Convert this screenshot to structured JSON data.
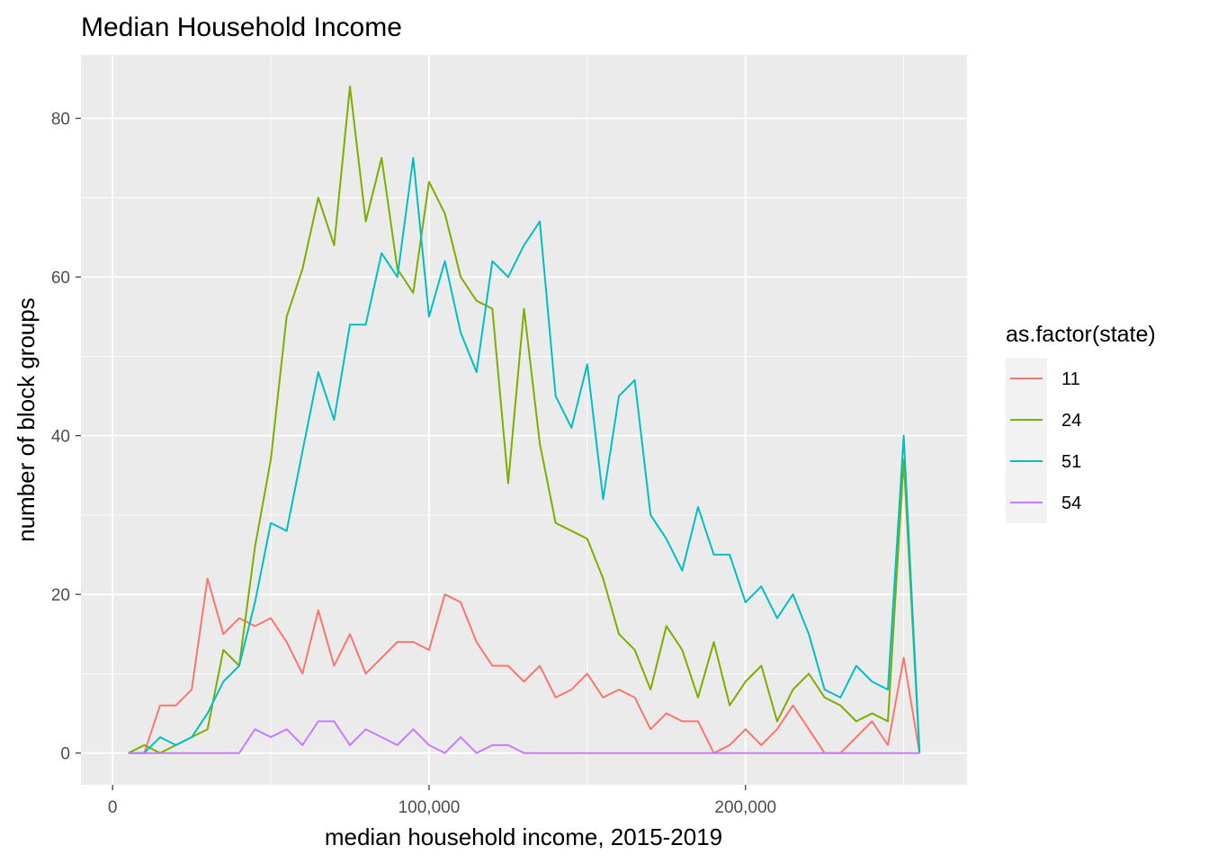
{
  "chart_data": {
    "type": "line",
    "title": "Median Household Income",
    "xlabel": "median household income, 2015-2019",
    "ylabel": "number of block groups",
    "xlim": [
      -10000,
      270000
    ],
    "ylim": [
      -4,
      88
    ],
    "x_ticks": [
      0,
      100000,
      200000
    ],
    "x_tick_labels": [
      "0",
      "100,000",
      "200,000"
    ],
    "x_minor_ticks": [
      50000,
      150000,
      250000
    ],
    "y_ticks": [
      0,
      20,
      40,
      60,
      80
    ],
    "y_tick_labels": [
      "0",
      "20",
      "40",
      "60",
      "80"
    ],
    "y_minor_ticks": [
      10,
      30,
      50,
      70
    ],
    "grid": true,
    "background": "#EBEBEB",
    "legend": {
      "title": "as.factor(state)",
      "position": "right"
    },
    "x": [
      5000,
      10000,
      15000,
      20000,
      25000,
      30000,
      35000,
      40000,
      45000,
      50000,
      55000,
      60000,
      65000,
      70000,
      75000,
      80000,
      85000,
      90000,
      95000,
      100000,
      105000,
      110000,
      115000,
      120000,
      125000,
      130000,
      135000,
      140000,
      145000,
      150000,
      155000,
      160000,
      165000,
      170000,
      175000,
      180000,
      185000,
      190000,
      195000,
      200000,
      205000,
      210000,
      215000,
      220000,
      225000,
      230000,
      235000,
      240000,
      245000,
      250000,
      255000
    ],
    "series": [
      {
        "name": "11",
        "color": "#F8766D",
        "values": [
          0,
          0,
          6,
          6,
          8,
          22,
          15,
          17,
          16,
          17,
          14,
          10,
          18,
          11,
          15,
          10,
          12,
          14,
          14,
          13,
          20,
          19,
          14,
          11,
          11,
          9,
          11,
          7,
          8,
          10,
          7,
          8,
          7,
          3,
          5,
          4,
          4,
          0,
          1,
          3,
          1,
          3,
          6,
          3,
          0,
          0,
          2,
          4,
          1,
          12,
          0
        ]
      },
      {
        "name": "24",
        "color": "#7CAE00",
        "values": [
          0,
          1,
          0,
          1,
          2,
          3,
          13,
          11,
          26,
          37,
          55,
          61,
          70,
          64,
          84,
          67,
          75,
          61,
          58,
          72,
          68,
          60,
          57,
          56,
          34,
          56,
          39,
          29,
          28,
          27,
          22,
          15,
          13,
          8,
          16,
          13,
          7,
          14,
          6,
          9,
          11,
          4,
          8,
          10,
          7,
          6,
          4,
          5,
          4,
          37,
          0
        ]
      },
      {
        "name": "51",
        "color": "#00BFC4",
        "values": [
          0,
          0,
          2,
          1,
          2,
          5,
          9,
          11,
          19,
          29,
          28,
          38,
          48,
          42,
          54,
          54,
          63,
          60,
          75,
          55,
          62,
          53,
          48,
          62,
          60,
          64,
          67,
          45,
          41,
          49,
          32,
          45,
          47,
          30,
          27,
          23,
          31,
          25,
          25,
          19,
          21,
          17,
          20,
          15,
          8,
          7,
          11,
          9,
          8,
          40,
          0
        ]
      },
      {
        "name": "54",
        "color": "#C77CFF",
        "values": [
          0,
          0,
          0,
          0,
          0,
          0,
          0,
          0,
          3,
          2,
          3,
          1,
          4,
          4,
          1,
          3,
          2,
          1,
          3,
          1,
          0,
          2,
          0,
          1,
          1,
          0,
          0,
          0,
          0,
          0,
          0,
          0,
          0,
          0,
          0,
          0,
          0,
          0,
          0,
          0,
          0,
          0,
          0,
          0,
          0,
          0,
          0,
          0,
          0,
          0,
          0
        ]
      }
    ]
  }
}
